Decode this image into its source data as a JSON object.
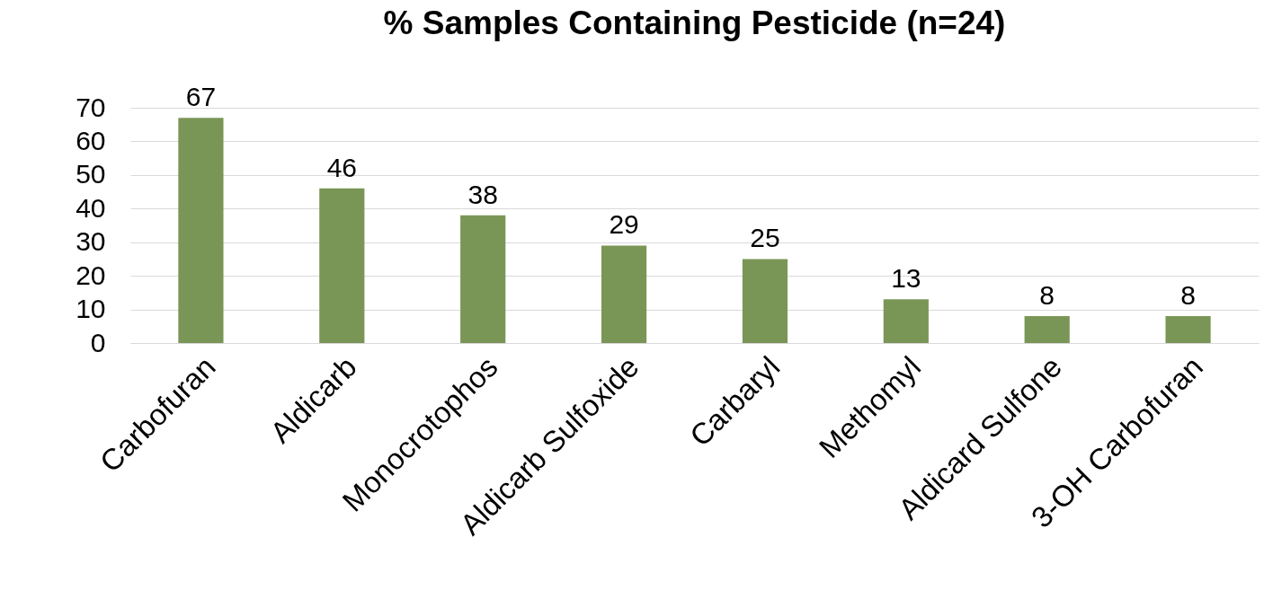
{
  "chart_data": {
    "type": "bar",
    "title": "% Samples Containing Pesticide (n=24)",
    "categories": [
      "Carbofuran",
      "Aldicarb",
      "Monocrotophos",
      "Aldicarb Sulfoxide",
      "Carbaryl",
      "Methomyl",
      "Aldicard Sulfone",
      "3-OH Carbofuran"
    ],
    "values": [
      67,
      46,
      38,
      29,
      25,
      13,
      8,
      8
    ],
    "color": "#7a9656",
    "ylim": [
      0,
      70
    ],
    "yticks": [
      0,
      10,
      20,
      30,
      40,
      50,
      60,
      70
    ],
    "grid": "y",
    "data_labels": true
  }
}
